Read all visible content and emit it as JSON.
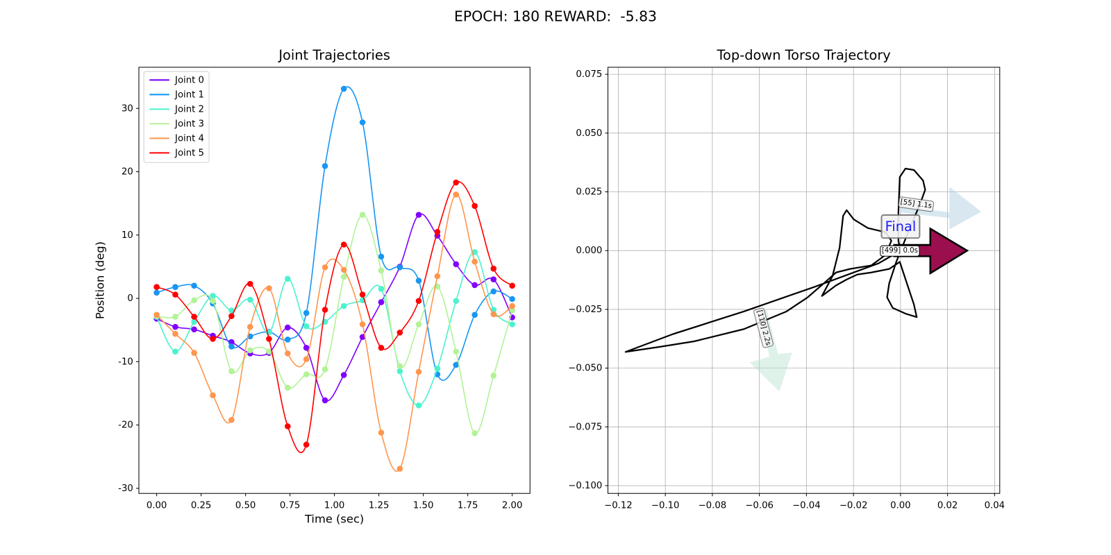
{
  "title": "EPOCH: 180 REWARD:  -5.83",
  "chart_data": [
    {
      "type": "line",
      "title": "Joint Trajectories",
      "x_label": "Time (sec)",
      "y_label": "Position (deg)",
      "smooth": true,
      "markers": true,
      "legend": "upper left",
      "grid": false,
      "x": [
        0,
        0.105,
        0.211,
        0.316,
        0.421,
        0.526,
        0.632,
        0.737,
        0.842,
        0.947,
        1.053,
        1.158,
        1.263,
        1.368,
        1.474,
        1.579,
        1.684,
        1.789,
        1.895,
        2.0
      ],
      "series": [
        {
          "name": "Joint 0",
          "color": "#8000ff",
          "values": [
            -3.2,
            -4.5,
            -4.9,
            -5.9,
            -6.9,
            -8.7,
            -8.6,
            -4.6,
            -7.8,
            -16.1,
            -12.1,
            -6.1,
            -0.6,
            5.0,
            13.2,
            9.9,
            5.4,
            2.1,
            3.0,
            -3.0
          ]
        },
        {
          "name": "Joint 1",
          "color": "#1996f3",
          "values": [
            0.9,
            1.8,
            2.0,
            -0.8,
            -7.6,
            -6.0,
            -5.3,
            -6.5,
            -2.3,
            20.9,
            33.1,
            27.8,
            6.6,
            4.9,
            2.8,
            -12.0,
            -10.5,
            -2.6,
            1.1,
            -0.1
          ]
        },
        {
          "name": "Joint 2",
          "color": "#4cf2ce",
          "values": [
            -2.9,
            -8.4,
            -3.7,
            0.4,
            -1.9,
            -0.2,
            -5.4,
            3.1,
            -4.4,
            -3.7,
            -1.2,
            -0.3,
            1.5,
            -11.5,
            -16.9,
            -11.1,
            -0.4,
            7.3,
            -1.8,
            -4.1
          ]
        },
        {
          "name": "Joint 3",
          "color": "#b2f396",
          "values": [
            -2.8,
            -2.9,
            -0.3,
            -0.4,
            -11.5,
            -8.2,
            -8.4,
            -14.1,
            -12.0,
            -11.2,
            3.4,
            13.2,
            4.4,
            -10.7,
            -4.1,
            1.9,
            -8.4,
            -21.3,
            -12.2,
            -1.9
          ]
        },
        {
          "name": "Joint 4",
          "color": "#ff964f",
          "values": [
            -2.6,
            -5.6,
            -8.6,
            -15.3,
            -19.2,
            -4.5,
            1.6,
            -8.7,
            -9.6,
            4.9,
            4.5,
            -4.1,
            -21.2,
            -26.9,
            -11.6,
            3.5,
            16.4,
            5.8,
            -2.5,
            -1.2
          ]
        },
        {
          "name": "Joint 5",
          "color": "#ff0000",
          "values": [
            1.8,
            0.6,
            -2.9,
            -6.4,
            -2.8,
            2.3,
            -6.4,
            -20.2,
            -23.1,
            -1.8,
            8.5,
            0.6,
            -7.8,
            -5.4,
            -0.4,
            10.5,
            18.3,
            14.6,
            4.7,
            2.0
          ]
        }
      ],
      "xlim": [
        -0.1,
        2.1
      ],
      "ylim": [
        -30.8,
        36.5
      ],
      "xticks": [
        {
          "value": 0,
          "label": "0.00"
        },
        0.25,
        {
          "value": 0.5,
          "label": "0.50"
        },
        0.75,
        {
          "value": 1,
          "label": "1.00"
        },
        1.25,
        {
          "value": 1.5,
          "label": "1.50"
        },
        1.75,
        {
          "value": 2,
          "label": "2.00"
        }
      ],
      "yticks": [
        -30,
        -20,
        -10,
        0,
        10,
        20,
        30
      ]
    },
    {
      "type": "line",
      "title": "Top-down Torso Trajectory",
      "grid": true,
      "color": "#000000",
      "x": [
        0,
        -0.0009,
        -0.0009,
        -0.0003,
        0.0021,
        0.0057,
        0.0096,
        0.0105,
        0.0081,
        0.0042,
        0.0012,
        -0.0018,
        -0.0048,
        -0.0057,
        -0.0033,
        0.0021,
        0.0069,
        0.0057,
        0.0027,
        -0.0003,
        -0.0048,
        -0.0124,
        -0.0184,
        -0.0229,
        -0.0274,
        -0.0334,
        -0.0289,
        -0.0259,
        -0.0244,
        -0.0229,
        -0.0199,
        -0.0139,
        -0.0063,
        -0.0039,
        -0.0063,
        -0.0124,
        -0.0214,
        -0.0274,
        -0.0319,
        -0.0395,
        -0.0485,
        -0.0666,
        -0.0877,
        -0.1027,
        -0.1169,
        -0.0967,
        -0.0666,
        -0.0365,
        -0.0093,
        0
      ],
      "values": [
        0,
        0.0042,
        0.0163,
        0.0313,
        0.0349,
        0.0343,
        0.0298,
        0.0259,
        0.0193,
        0.0102,
        0.0027,
        -0.0048,
        -0.0139,
        -0.0199,
        -0.0244,
        -0.0268,
        -0.0283,
        -0.0229,
        -0.0139,
        -0.0048,
        -0.0078,
        -0.0093,
        -0.0102,
        -0.0123,
        -0.0148,
        -0.0193,
        -0.0108,
        0.0012,
        0.0148,
        0.0172,
        0.0133,
        0.0096,
        0.0078,
        0.0042,
        -0.0018,
        -0.0063,
        -0.0078,
        -0.0093,
        -0.0133,
        -0.0199,
        -0.0259,
        -0.0334,
        -0.0386,
        -0.041,
        -0.0431,
        -0.0355,
        -0.0259,
        -0.0154,
        -0.0054,
        0
      ],
      "xlim": [
        -0.1244,
        0.0422
      ],
      "ylim": [
        -0.1033,
        0.078
      ],
      "xticks": [
        {
          "value": -0.12,
          "label": "−0.12"
        },
        {
          "value": -0.1,
          "label": "−0.10"
        },
        {
          "value": -0.08,
          "label": "−0.08"
        },
        {
          "value": -0.06,
          "label": "−0.06"
        },
        {
          "value": -0.04,
          "label": "−0.04"
        },
        {
          "value": -0.02,
          "label": "−0.02"
        },
        {
          "value": 0,
          "label": "0.00"
        },
        0.02,
        0.04
      ],
      "yticks": [
        {
          "value": -0.1,
          "label": "−0.100"
        },
        {
          "value": -0.075,
          "label": "−0.075"
        },
        {
          "value": -0.05,
          "label": "−0.050"
        },
        {
          "value": -0.025,
          "label": "−0.025"
        },
        {
          "value": 0,
          "label": "0.000"
        },
        0.025,
        {
          "value": 0.05,
          "label": "0.050"
        },
        0.075
      ],
      "annotations": [
        "[55] 1.1s",
        "[110] 2.2s",
        "[499] 0.0s",
        "Final"
      ]
    }
  ]
}
